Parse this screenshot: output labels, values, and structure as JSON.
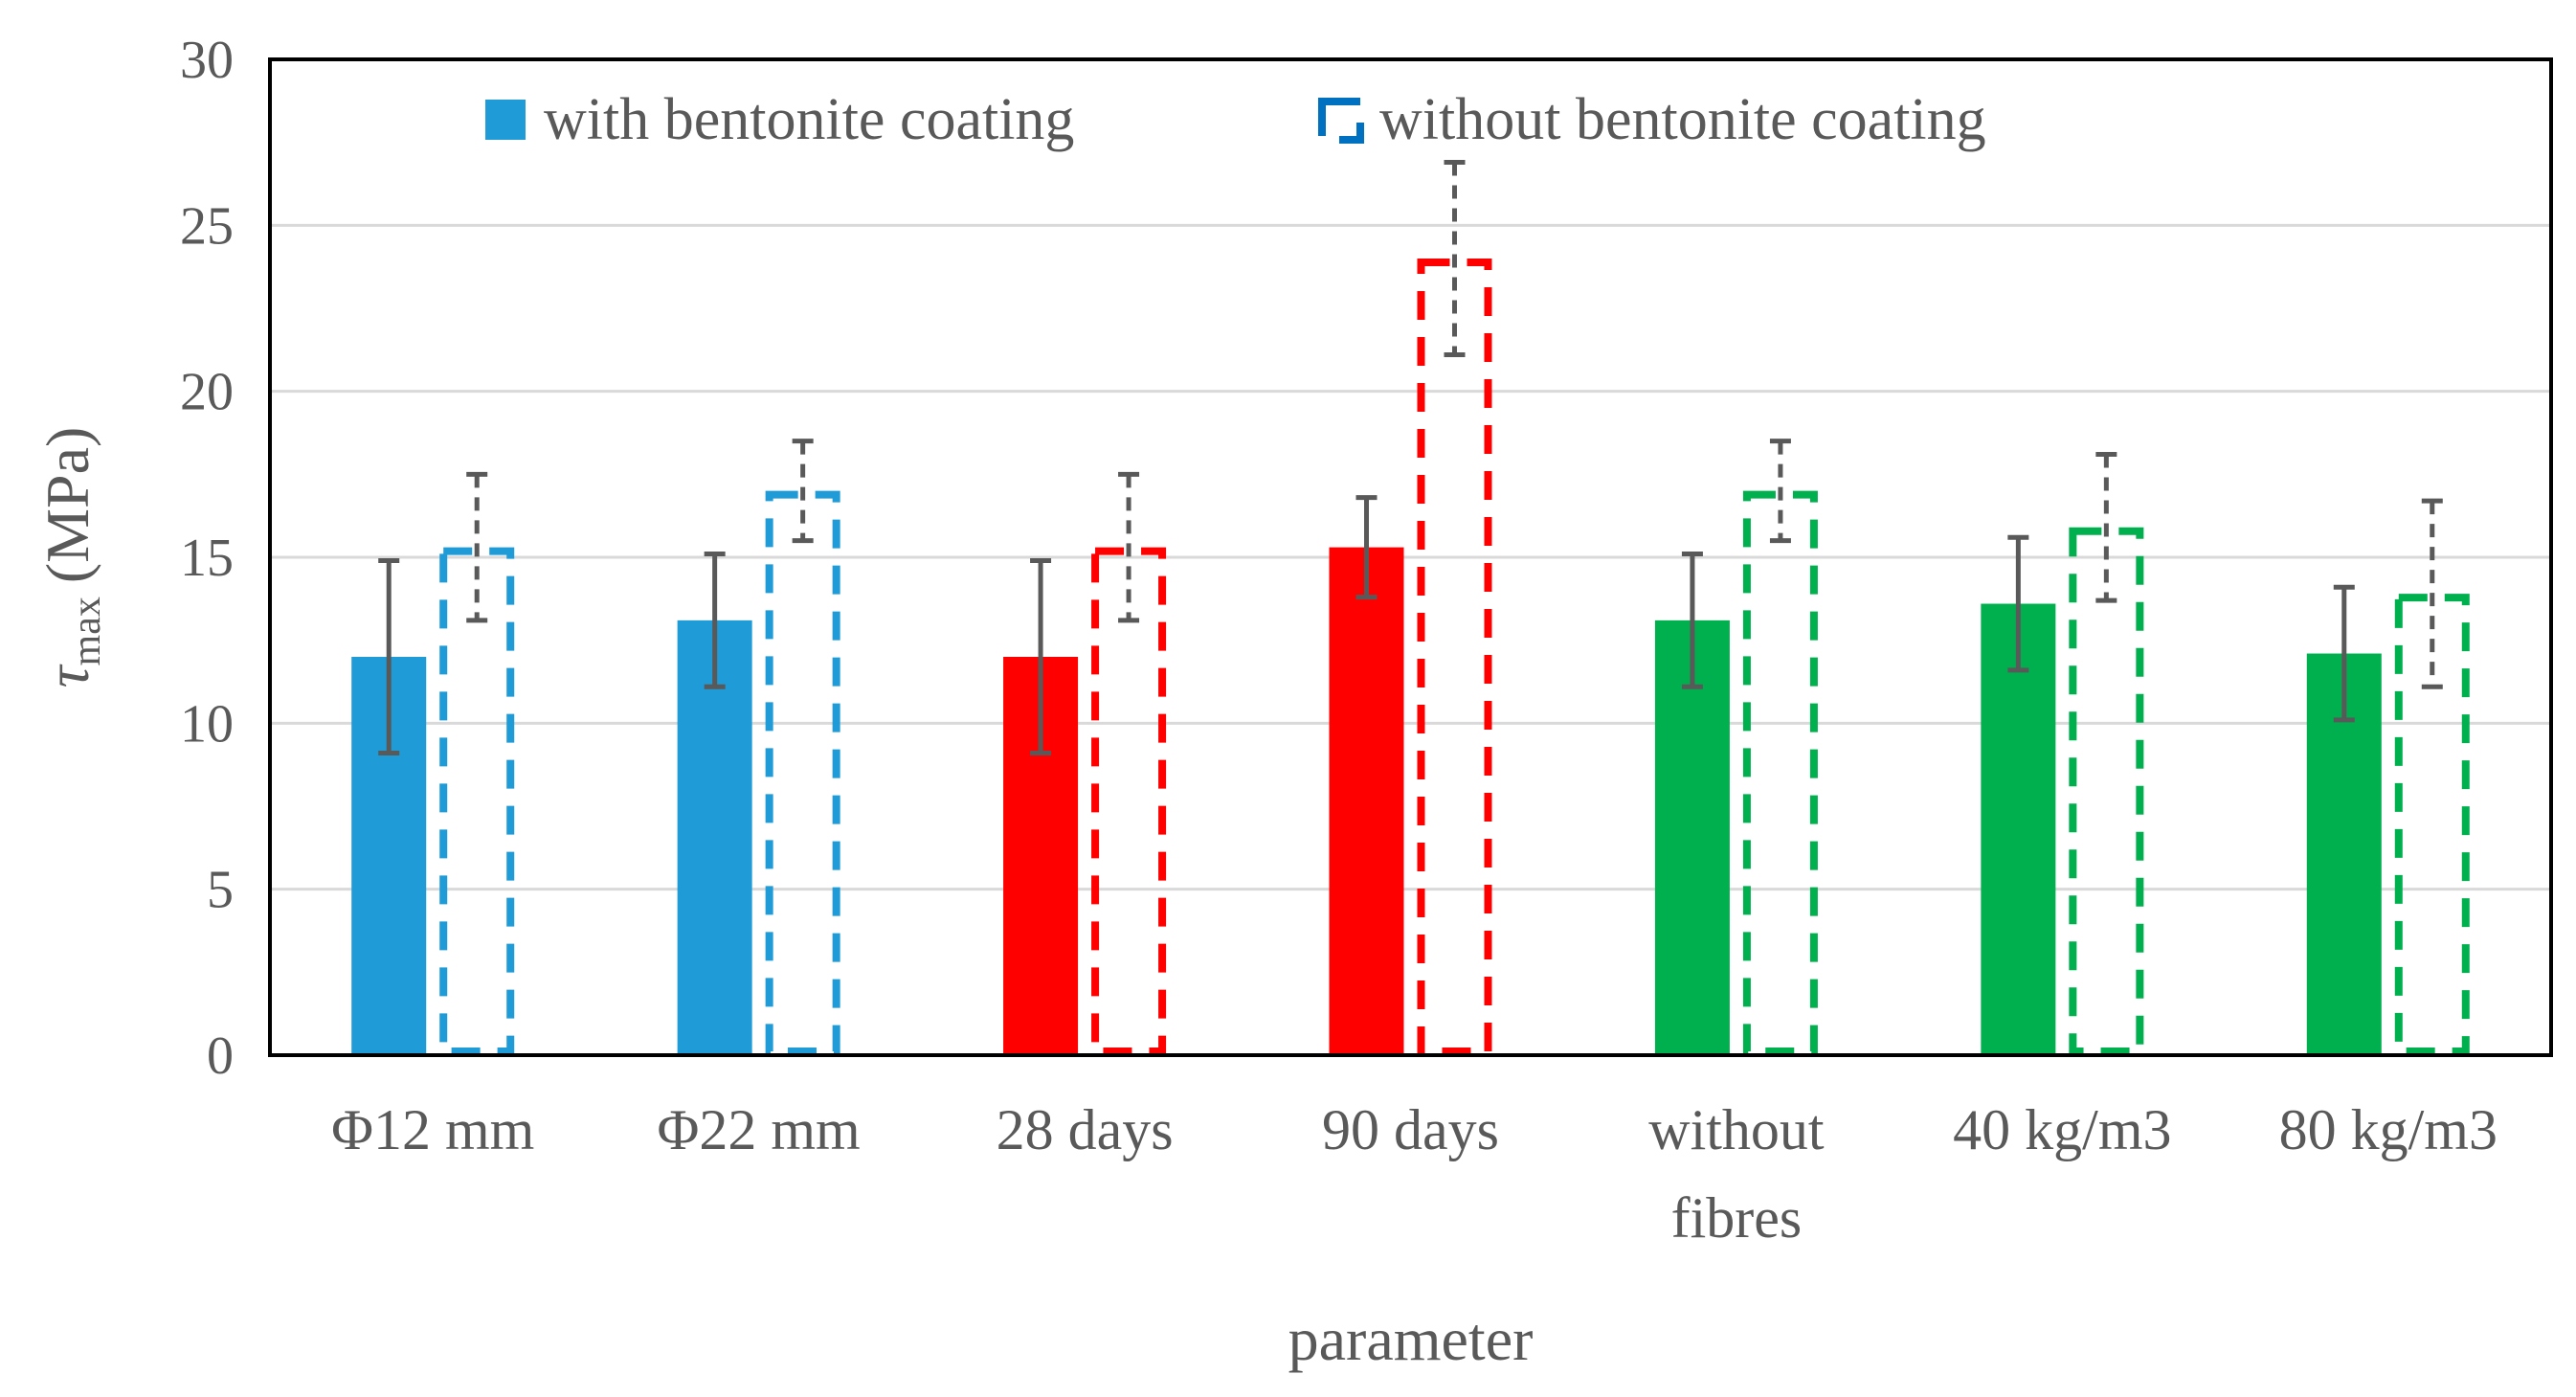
{
  "chart_data": {
    "type": "bar",
    "categories": [
      "Φ12 mm",
      "Φ22 mm",
      "28 days",
      "90 days",
      "without fibres",
      "40 kg/m3",
      "80 kg/m3"
    ],
    "category_lines": [
      [
        "Φ12 mm"
      ],
      [
        "Φ22 mm"
      ],
      [
        "28 days"
      ],
      [
        "90 days"
      ],
      [
        "without",
        "fibres"
      ],
      [
        "40 kg/m3"
      ],
      [
        "80 kg/m3"
      ]
    ],
    "colors": [
      "#1F9BD7",
      "#1F9BD7",
      "#FF0000",
      "#FF0000",
      "#00B04F",
      "#00B04F",
      "#00B04F"
    ],
    "series": [
      {
        "name": "with bentonite coating",
        "style": "solid",
        "values": [
          12.0,
          13.1,
          12.0,
          15.3,
          13.1,
          13.6,
          12.1
        ],
        "errors": [
          2.9,
          2.0,
          2.9,
          1.5,
          2.0,
          2.0,
          2.0
        ]
      },
      {
        "name": "without bentonite coating",
        "style": "dashed",
        "values": [
          15.3,
          17.0,
          15.3,
          24.0,
          17.0,
          15.9,
          13.9
        ],
        "errors": [
          2.2,
          1.5,
          2.2,
          2.9,
          1.5,
          2.2,
          2.8
        ]
      }
    ],
    "title": "",
    "xlabel": "parameter",
    "ylabel_main": "τ",
    "ylabel_sub": "max",
    "ylabel_unit": "(MPa)",
    "ylim": [
      0,
      30
    ],
    "yticks": [
      0,
      5,
      10,
      15,
      20,
      25,
      30
    ],
    "grid": true,
    "legend_position": "top"
  }
}
